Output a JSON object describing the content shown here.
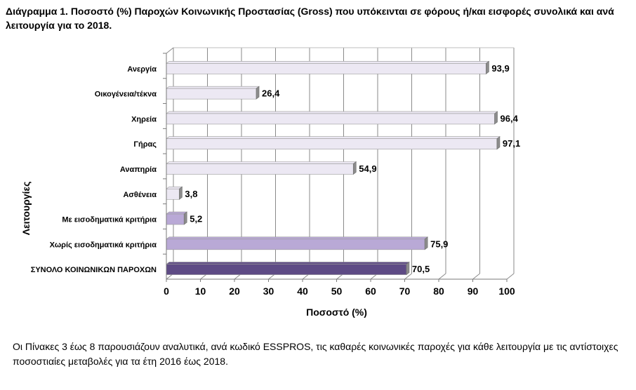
{
  "caption": {
    "number": "Διάγραμμα 1.",
    "text": "Ποσοστό (%) Παροχών Κοινωνικής Προστασίας (Gross) που υπόκεινται σε φόρους ή/και εισφορές συνολικά και ανά λειτουργία για το 2018."
  },
  "chart_data": {
    "type": "bar",
    "orientation": "horizontal",
    "categories": [
      "Ανεργία",
      "Οικογένεια/τέκνα",
      "Χηρεία",
      "Γήρας",
      "Αναπηρία",
      "Ασθένεια",
      "Με εισοδηματικά κριτήρια",
      "Χωρίς εισοδηματικά κριτήρια",
      "ΣΥΝΟΛΟ ΚΟΙΝΩΝΙΚΩΝ ΠΑΡΟΧΩΝ"
    ],
    "values": [
      93.9,
      26.4,
      96.4,
      97.1,
      54.9,
      3.8,
      5.2,
      75.9,
      70.5
    ],
    "value_labels": [
      "93,9",
      "26,4",
      "96,4",
      "97,1",
      "54,9",
      "3,8",
      "5,2",
      "75,9",
      "70,5"
    ],
    "bar_colors": [
      "#ece8f3",
      "#ece8f3",
      "#ece8f3",
      "#ece8f3",
      "#ece8f3",
      "#ece8f3",
      "#b9a9d6",
      "#b9a9d6",
      "#5e4b85"
    ],
    "xlabel": "Ποσοστό (%)",
    "ylabel": "Λειτουργίες",
    "xlim": [
      0,
      100
    ],
    "xticks": [
      0,
      10,
      20,
      30,
      40,
      50,
      60,
      70,
      80,
      90,
      100
    ],
    "grid": true
  },
  "footnote": "Οι Πίνακες 3 έως 8 παρουσιάζουν αναλυτικά, ανά κωδικό ESSPROS, τις καθαρές κοινωνικές παροχές για κάθε λειτουργία με τις αντίστοιχες ποσοστιαίες μεταβολές για τα έτη 2016 έως 2018."
}
